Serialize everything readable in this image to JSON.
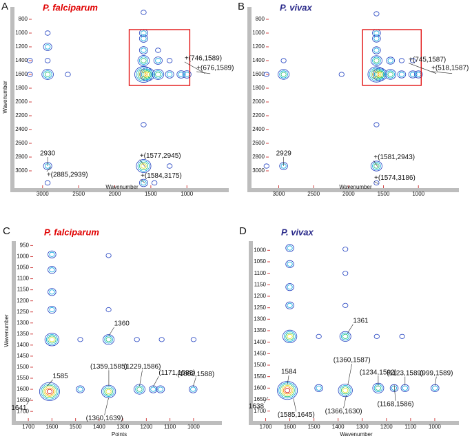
{
  "chart_data": [
    {
      "type": "contour",
      "panel": "A",
      "title": "P. falciparum",
      "title_color": "#e00000",
      "xlabel": "Wavenumber",
      "ylabel": "Wavenumber",
      "xlim": [
        3380,
        420
      ],
      "ylim": [
        620,
        3240
      ],
      "xticks": [
        3000,
        2500,
        2000,
        1500,
        1000
      ],
      "yticks": [
        800,
        1000,
        1200,
        1400,
        1600,
        1800,
        2000,
        2200,
        2400,
        2600,
        2800,
        3000
      ],
      "box": {
        "x": [
          1800,
          960
        ],
        "y": [
          950,
          1760
        ],
        "color": "#e00000"
      },
      "peaks": [
        [
          1600,
          1600,
          5
        ],
        [
          1550,
          1600,
          4
        ],
        [
          1600,
          1400,
          3
        ],
        [
          1600,
          1250,
          2
        ],
        [
          1600,
          1080,
          2
        ],
        [
          1600,
          1000,
          2
        ],
        [
          1400,
          1600,
          3
        ],
        [
          1240,
          1600,
          2
        ],
        [
          1080,
          1600,
          2
        ],
        [
          1000,
          1600,
          2
        ],
        [
          1600,
          2930,
          4
        ],
        [
          1600,
          3175,
          2
        ],
        [
          1600,
          2330,
          1
        ],
        [
          1600,
          700,
          1
        ],
        [
          2930,
          1600,
          3
        ],
        [
          2930,
          1000,
          1
        ],
        [
          2930,
          1200,
          2
        ],
        [
          2930,
          1400,
          1
        ],
        [
          2930,
          2930,
          2
        ],
        [
          2930,
          3175,
          1
        ],
        [
          1400,
          1400,
          2
        ],
        [
          1400,
          1250,
          1
        ],
        [
          1240,
          1400,
          1
        ],
        [
          3175,
          1600,
          1
        ],
        [
          2650,
          1600,
          1
        ],
        [
          3175,
          1400,
          1
        ],
        [
          1240,
          2930,
          1
        ],
        [
          1450,
          3175,
          1
        ]
      ],
      "annotations": [
        {
          "text": "2930",
          "x": 2930,
          "y": 2930
        },
        {
          "text": "+(2885,2939)",
          "x": 2885,
          "y": 2939
        },
        {
          "text": "+(1577,2945)",
          "x": 1577,
          "y": 2945
        },
        {
          "text": "+(1584,3175)",
          "x": 1584,
          "y": 3175
        },
        {
          "text": "+(746,1589)",
          "x": 746,
          "y": 1589
        },
        {
          "text": "+(676,1589)",
          "x": 676,
          "y": 1589
        }
      ]
    },
    {
      "type": "contour",
      "panel": "B",
      "title": "P. vivax",
      "title_color": "#2a2a8a",
      "xlabel": "Wavenumber",
      "xlim": [
        3380,
        420
      ],
      "ylim": [
        620,
        3240
      ],
      "xticks": [
        3000,
        2500,
        2000,
        1500,
        1000
      ],
      "yticks": [
        800,
        1000,
        1200,
        1400,
        1600,
        1800,
        2000,
        2200,
        2400,
        2600,
        2800,
        3000
      ],
      "box": {
        "x": [
          1800,
          960
        ],
        "y": [
          950,
          1760
        ],
        "color": "#e00000"
      },
      "peaks": [
        [
          1600,
          1600,
          5
        ],
        [
          1550,
          1600,
          4
        ],
        [
          1600,
          1400,
          3
        ],
        [
          1600,
          1250,
          2
        ],
        [
          1600,
          1080,
          2
        ],
        [
          1600,
          1000,
          2
        ],
        [
          1400,
          1600,
          3
        ],
        [
          1240,
          1600,
          2
        ],
        [
          1080,
          1600,
          2
        ],
        [
          1000,
          1600,
          2
        ],
        [
          1600,
          2930,
          3
        ],
        [
          1600,
          3175,
          1
        ],
        [
          1600,
          2330,
          1
        ],
        [
          1600,
          720,
          1
        ],
        [
          2930,
          1600,
          3
        ],
        [
          2930,
          1400,
          1
        ],
        [
          2930,
          2930,
          2
        ],
        [
          3175,
          1600,
          1
        ],
        [
          1400,
          1400,
          2
        ],
        [
          1240,
          1400,
          1
        ],
        [
          1080,
          1400,
          1
        ],
        [
          2100,
          1600,
          1
        ],
        [
          3175,
          2930,
          1
        ]
      ],
      "annotations": [
        {
          "text": "2929",
          "x": 2929,
          "y": 2929
        },
        {
          "text": "+(1581,2943)",
          "x": 1581,
          "y": 2943
        },
        {
          "text": "+(1574,3186)",
          "x": 1574,
          "y": 3186
        },
        {
          "text": "+(745,1587)",
          "x": 745,
          "y": 1587
        },
        {
          "text": "+(518,1587)",
          "x": 518,
          "y": 1587
        }
      ]
    },
    {
      "type": "contour",
      "panel": "C",
      "title": "P. falciparum",
      "title_color": "#e00000",
      "xlabel": "Points",
      "ylabel": "Wavenumber",
      "xlim": [
        1750,
        880
      ],
      "ylim": [
        930,
        1740
      ],
      "xticks": [
        1700,
        1600,
        1500,
        1400,
        1300,
        1200,
        1100,
        1000
      ],
      "yticks": [
        950,
        1000,
        1050,
        1100,
        1150,
        1200,
        1250,
        1300,
        1350,
        1400,
        1450,
        1500,
        1550,
        1600,
        1650,
        1700
      ],
      "peaks": [
        [
          1610,
          1610,
          6
        ],
        [
          1600,
          1375,
          4
        ],
        [
          1600,
          1240,
          2
        ],
        [
          1600,
          1160,
          2
        ],
        [
          1600,
          1060,
          2
        ],
        [
          1600,
          990,
          2
        ],
        [
          1360,
          1375,
          3
        ],
        [
          1360,
          1610,
          4
        ],
        [
          1360,
          995,
          1
        ],
        [
          1229,
          1600,
          3
        ],
        [
          1171,
          1600,
          2
        ],
        [
          1140,
          1600,
          2
        ],
        [
          1002,
          1600,
          2
        ],
        [
          1480,
          1600,
          2
        ],
        [
          1240,
          1375,
          1
        ],
        [
          1135,
          1375,
          1
        ],
        [
          1000,
          1375,
          1
        ],
        [
          1480,
          1375,
          1
        ],
        [
          1360,
          1240,
          1
        ]
      ],
      "annotations": [
        {
          "text": "1641",
          "x": 1690,
          "y": 1641
        },
        {
          "text": "1585",
          "x": 1620,
          "y": 1585
        },
        {
          "text": "1360",
          "x": 1360,
          "y": 1360
        },
        {
          "text": "(1359,1585)",
          "x": 1359,
          "y": 1585
        },
        {
          "text": "(1229,1586)",
          "x": 1229,
          "y": 1586
        },
        {
          "text": "(1171,1588)",
          "x": 1171,
          "y": 1588
        },
        {
          "text": "(1002,1588)",
          "x": 1002,
          "y": 1588
        },
        {
          "text": "(1360,1639)",
          "x": 1360,
          "y": 1639
        }
      ]
    },
    {
      "type": "contour",
      "panel": "D",
      "title": "P. vivax",
      "title_color": "#2a2a8a",
      "xlabel": "Wavenumber",
      "xlim": [
        1750,
        900
      ],
      "ylim": [
        960,
        1740
      ],
      "xticks": [
        1700,
        1600,
        1500,
        1400,
        1300,
        1200,
        1100,
        1000
      ],
      "yticks": [
        1000,
        1050,
        1100,
        1150,
        1200,
        1250,
        1300,
        1350,
        1400,
        1450,
        1500,
        1550,
        1600,
        1650,
        1700
      ],
      "peaks": [
        [
          1610,
          1610,
          6
        ],
        [
          1600,
          1375,
          4
        ],
        [
          1600,
          1240,
          2
        ],
        [
          1600,
          1160,
          2
        ],
        [
          1600,
          1060,
          2
        ],
        [
          1600,
          990,
          2
        ],
        [
          1370,
          1375,
          3
        ],
        [
          1370,
          1610,
          4
        ],
        [
          1370,
          995,
          1
        ],
        [
          1234,
          1600,
          3
        ],
        [
          1168,
          1600,
          2
        ],
        [
          1123,
          1600,
          2
        ],
        [
          999,
          1600,
          2
        ],
        [
          1480,
          1600,
          2
        ],
        [
          1240,
          1375,
          1
        ],
        [
          1135,
          1375,
          1
        ],
        [
          1480,
          1375,
          1
        ],
        [
          1370,
          1240,
          1
        ],
        [
          1370,
          1100,
          1
        ]
      ],
      "annotations": [
        {
          "text": "1638",
          "x": 1690,
          "y": 1638
        },
        {
          "text": "1584",
          "x": 1610,
          "y": 1584
        },
        {
          "text": "1361",
          "x": 1361,
          "y": 1361
        },
        {
          "text": "(1360,1587)",
          "x": 1360,
          "y": 1587
        },
        {
          "text": "(1366,1630)",
          "x": 1366,
          "y": 1630
        },
        {
          "text": "(1234,1592)",
          "x": 1234,
          "y": 1592
        },
        {
          "text": "(1123,1589)",
          "x": 1123,
          "y": 1589
        },
        {
          "text": "(1168,1586)",
          "x": 1168,
          "y": 1586
        },
        {
          "text": "(999,1589)",
          "x": 999,
          "y": 1589
        },
        {
          "text": "(1585,1645)",
          "x": 1585,
          "y": 1645
        }
      ]
    }
  ]
}
